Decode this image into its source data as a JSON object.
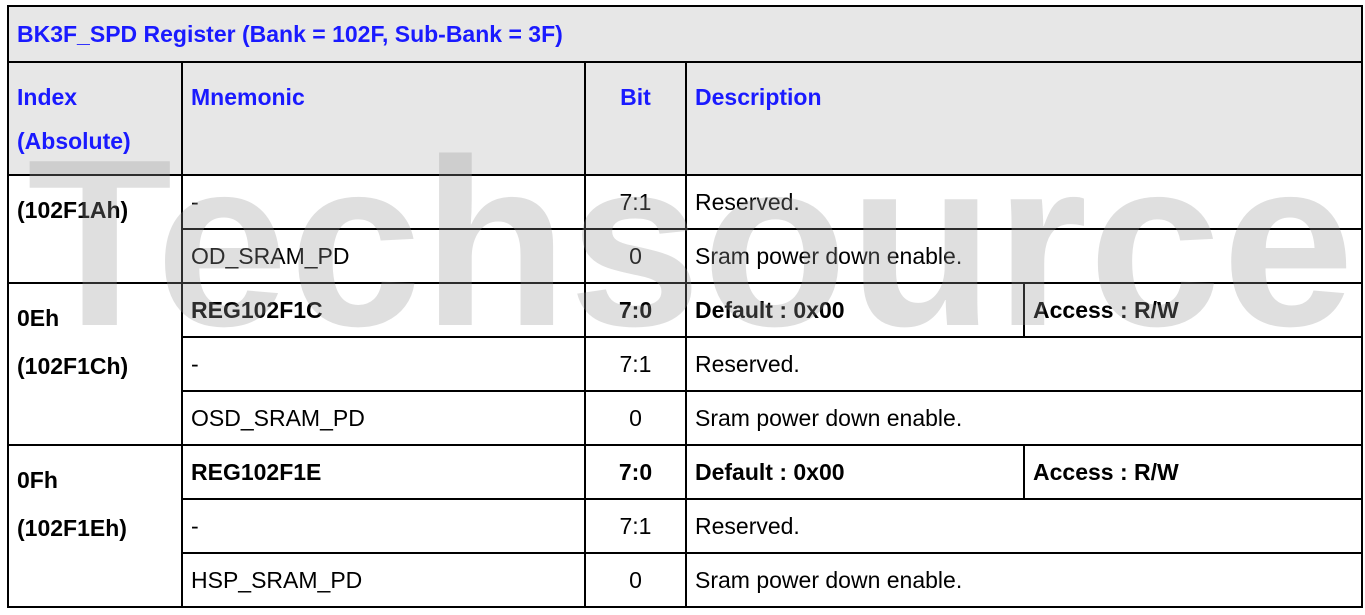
{
  "title": "BK3F_SPD Register (Bank = 102F, Sub-Bank = 3F)",
  "watermark": "Techsource",
  "headers": {
    "index_line1": "Index",
    "index_line2": "(Absolute)",
    "mnemonic": "Mnemonic",
    "bit": "Bit",
    "description": "Description"
  },
  "groups": [
    {
      "index_line1": "(102F1Ah)",
      "index_line2": "",
      "rows": [
        {
          "mnemonic": "-",
          "bit": "7:1",
          "description": "Reserved."
        },
        {
          "mnemonic": "OD_SRAM_PD",
          "bit": "0",
          "description": "Sram power down enable."
        }
      ]
    },
    {
      "index_line1": "0Eh",
      "index_line2": "(102F1Ch)",
      "reg": {
        "mnemonic": "REG102F1C",
        "bit": "7:0",
        "default": "Default : 0x00",
        "access": "Access : R/W"
      },
      "rows": [
        {
          "mnemonic": "-",
          "bit": "7:1",
          "description": "Reserved."
        },
        {
          "mnemonic": "OSD_SRAM_PD",
          "bit": "0",
          "description": "Sram power down enable."
        }
      ]
    },
    {
      "index_line1": "0Fh",
      "index_line2": "(102F1Eh)",
      "reg": {
        "mnemonic": "REG102F1E",
        "bit": "7:0",
        "default": "Default : 0x00",
        "access": "Access : R/W"
      },
      "rows": [
        {
          "mnemonic": "-",
          "bit": "7:1",
          "description": "Reserved."
        },
        {
          "mnemonic": "HSP_SRAM_PD",
          "bit": "0",
          "description": "Sram power down enable."
        }
      ]
    }
  ]
}
